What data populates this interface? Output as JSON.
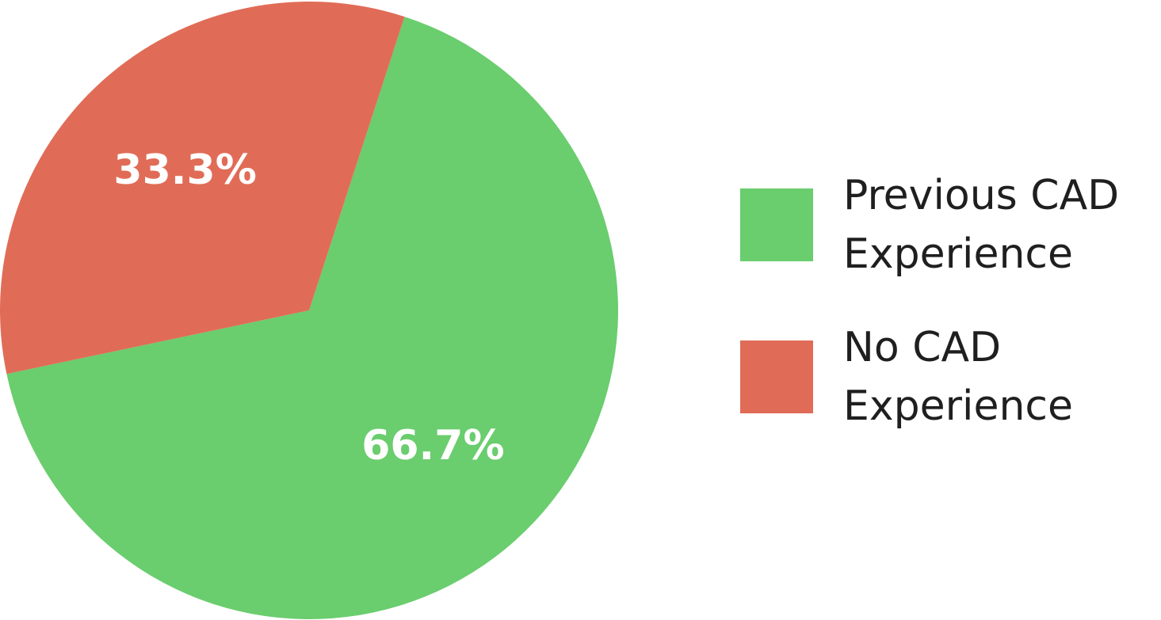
{
  "chart_data": {
    "type": "pie",
    "title": "",
    "categories": [
      "Previous CAD Experience",
      "No CAD Experience"
    ],
    "values": [
      66.7,
      33.3
    ],
    "labels": [
      "66.7%",
      "33.3%"
    ],
    "colors": [
      "#6acd6e",
      "#e06c57"
    ],
    "legend_position": "right",
    "slices": [
      {
        "name_line1": "Previous CAD",
        "name_line2": "Experience",
        "value": 66.7,
        "label": "66.7%",
        "color": "#6acd6e"
      },
      {
        "name_line1": "No CAD",
        "name_line2": "Experience",
        "value": 33.3,
        "label": "33.3%",
        "color": "#e06c57"
      }
    ]
  }
}
